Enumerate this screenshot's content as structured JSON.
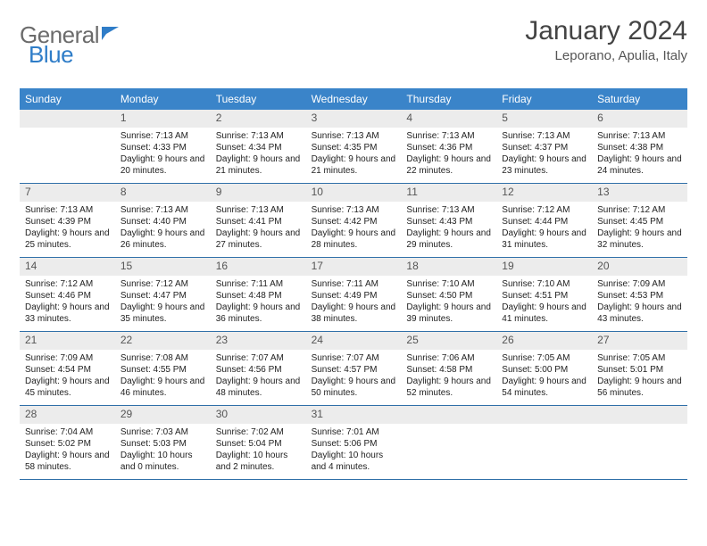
{
  "logo": {
    "part1": "General",
    "part2": "Blue"
  },
  "title": "January 2024",
  "location": "Leporano, Apulia, Italy",
  "style": {
    "header_bg": "#3a84c9",
    "header_text": "#ffffff",
    "date_band_bg": "#ececec",
    "week_border": "#2f6fa8",
    "body_font_size": 10,
    "header_font_size": 12,
    "title_font_size": 30
  },
  "day_names": [
    "Sunday",
    "Monday",
    "Tuesday",
    "Wednesday",
    "Thursday",
    "Friday",
    "Saturday"
  ],
  "weeks": [
    [
      null,
      {
        "d": "1",
        "sr": "Sunrise: 7:13 AM",
        "ss": "Sunset: 4:33 PM",
        "dl": "Daylight: 9 hours and 20 minutes."
      },
      {
        "d": "2",
        "sr": "Sunrise: 7:13 AM",
        "ss": "Sunset: 4:34 PM",
        "dl": "Daylight: 9 hours and 21 minutes."
      },
      {
        "d": "3",
        "sr": "Sunrise: 7:13 AM",
        "ss": "Sunset: 4:35 PM",
        "dl": "Daylight: 9 hours and 21 minutes."
      },
      {
        "d": "4",
        "sr": "Sunrise: 7:13 AM",
        "ss": "Sunset: 4:36 PM",
        "dl": "Daylight: 9 hours and 22 minutes."
      },
      {
        "d": "5",
        "sr": "Sunrise: 7:13 AM",
        "ss": "Sunset: 4:37 PM",
        "dl": "Daylight: 9 hours and 23 minutes."
      },
      {
        "d": "6",
        "sr": "Sunrise: 7:13 AM",
        "ss": "Sunset: 4:38 PM",
        "dl": "Daylight: 9 hours and 24 minutes."
      }
    ],
    [
      {
        "d": "7",
        "sr": "Sunrise: 7:13 AM",
        "ss": "Sunset: 4:39 PM",
        "dl": "Daylight: 9 hours and 25 minutes."
      },
      {
        "d": "8",
        "sr": "Sunrise: 7:13 AM",
        "ss": "Sunset: 4:40 PM",
        "dl": "Daylight: 9 hours and 26 minutes."
      },
      {
        "d": "9",
        "sr": "Sunrise: 7:13 AM",
        "ss": "Sunset: 4:41 PM",
        "dl": "Daylight: 9 hours and 27 minutes."
      },
      {
        "d": "10",
        "sr": "Sunrise: 7:13 AM",
        "ss": "Sunset: 4:42 PM",
        "dl": "Daylight: 9 hours and 28 minutes."
      },
      {
        "d": "11",
        "sr": "Sunrise: 7:13 AM",
        "ss": "Sunset: 4:43 PM",
        "dl": "Daylight: 9 hours and 29 minutes."
      },
      {
        "d": "12",
        "sr": "Sunrise: 7:12 AM",
        "ss": "Sunset: 4:44 PM",
        "dl": "Daylight: 9 hours and 31 minutes."
      },
      {
        "d": "13",
        "sr": "Sunrise: 7:12 AM",
        "ss": "Sunset: 4:45 PM",
        "dl": "Daylight: 9 hours and 32 minutes."
      }
    ],
    [
      {
        "d": "14",
        "sr": "Sunrise: 7:12 AM",
        "ss": "Sunset: 4:46 PM",
        "dl": "Daylight: 9 hours and 33 minutes."
      },
      {
        "d": "15",
        "sr": "Sunrise: 7:12 AM",
        "ss": "Sunset: 4:47 PM",
        "dl": "Daylight: 9 hours and 35 minutes."
      },
      {
        "d": "16",
        "sr": "Sunrise: 7:11 AM",
        "ss": "Sunset: 4:48 PM",
        "dl": "Daylight: 9 hours and 36 minutes."
      },
      {
        "d": "17",
        "sr": "Sunrise: 7:11 AM",
        "ss": "Sunset: 4:49 PM",
        "dl": "Daylight: 9 hours and 38 minutes."
      },
      {
        "d": "18",
        "sr": "Sunrise: 7:10 AM",
        "ss": "Sunset: 4:50 PM",
        "dl": "Daylight: 9 hours and 39 minutes."
      },
      {
        "d": "19",
        "sr": "Sunrise: 7:10 AM",
        "ss": "Sunset: 4:51 PM",
        "dl": "Daylight: 9 hours and 41 minutes."
      },
      {
        "d": "20",
        "sr": "Sunrise: 7:09 AM",
        "ss": "Sunset: 4:53 PM",
        "dl": "Daylight: 9 hours and 43 minutes."
      }
    ],
    [
      {
        "d": "21",
        "sr": "Sunrise: 7:09 AM",
        "ss": "Sunset: 4:54 PM",
        "dl": "Daylight: 9 hours and 45 minutes."
      },
      {
        "d": "22",
        "sr": "Sunrise: 7:08 AM",
        "ss": "Sunset: 4:55 PM",
        "dl": "Daylight: 9 hours and 46 minutes."
      },
      {
        "d": "23",
        "sr": "Sunrise: 7:07 AM",
        "ss": "Sunset: 4:56 PM",
        "dl": "Daylight: 9 hours and 48 minutes."
      },
      {
        "d": "24",
        "sr": "Sunrise: 7:07 AM",
        "ss": "Sunset: 4:57 PM",
        "dl": "Daylight: 9 hours and 50 minutes."
      },
      {
        "d": "25",
        "sr": "Sunrise: 7:06 AM",
        "ss": "Sunset: 4:58 PM",
        "dl": "Daylight: 9 hours and 52 minutes."
      },
      {
        "d": "26",
        "sr": "Sunrise: 7:05 AM",
        "ss": "Sunset: 5:00 PM",
        "dl": "Daylight: 9 hours and 54 minutes."
      },
      {
        "d": "27",
        "sr": "Sunrise: 7:05 AM",
        "ss": "Sunset: 5:01 PM",
        "dl": "Daylight: 9 hours and 56 minutes."
      }
    ],
    [
      {
        "d": "28",
        "sr": "Sunrise: 7:04 AM",
        "ss": "Sunset: 5:02 PM",
        "dl": "Daylight: 9 hours and 58 minutes."
      },
      {
        "d": "29",
        "sr": "Sunrise: 7:03 AM",
        "ss": "Sunset: 5:03 PM",
        "dl": "Daylight: 10 hours and 0 minutes."
      },
      {
        "d": "30",
        "sr": "Sunrise: 7:02 AM",
        "ss": "Sunset: 5:04 PM",
        "dl": "Daylight: 10 hours and 2 minutes."
      },
      {
        "d": "31",
        "sr": "Sunrise: 7:01 AM",
        "ss": "Sunset: 5:06 PM",
        "dl": "Daylight: 10 hours and 4 minutes."
      },
      null,
      null,
      null
    ]
  ]
}
